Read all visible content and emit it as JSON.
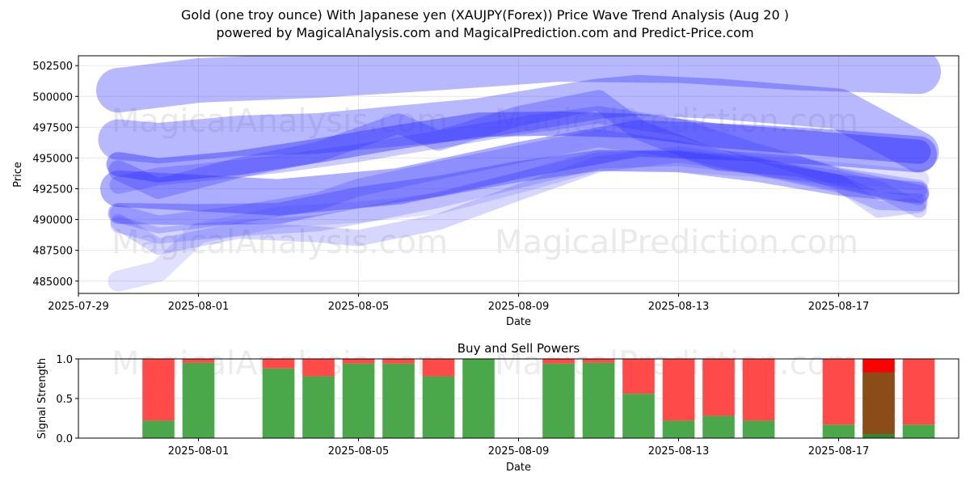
{
  "title": "Gold (one troy ounce) With Japanese yen (XAUJPY(Forex)) Price Wave Trend Analysis (Aug 20 )",
  "subtitle": "powered by MagicalAnalysis.com and MagicalPrediction.com and Predict-Price.com",
  "watermarks": [
    "MagicalAnalysis.com",
    "MagicalPrediction.com"
  ],
  "colors": {
    "wave": "#3333ff",
    "buy": "#4aa84a",
    "sell": "#ff4a4a",
    "sell_dark": "#ff0000",
    "buy_dark": "#2e8b2e"
  },
  "chart_data": [
    {
      "type": "line",
      "title": "",
      "xlabel": "Date",
      "ylabel": "Price",
      "xlim": [
        "2025-07-29",
        "2025-08-20"
      ],
      "ylim": [
        484000,
        503300
      ],
      "x_ticks": [
        "2025-07-29",
        "2025-08-01",
        "2025-08-05",
        "2025-08-09",
        "2025-08-13",
        "2025-08-17"
      ],
      "y_ticks": [
        485000,
        487500,
        490000,
        492500,
        495000,
        497500,
        500000,
        502500
      ],
      "grid": true,
      "series": [
        {
          "x": [
            "2025-07-30",
            "2025-08-01",
            "2025-08-04",
            "2025-08-07",
            "2025-08-10",
            "2025-08-13",
            "2025-08-16",
            "2025-08-19"
          ],
          "y": [
            500500,
            501300,
            501700,
            502300,
            503000,
            502900,
            502300,
            502000
          ],
          "alpha": 0.35,
          "width": 55
        },
        {
          "x": [
            "2025-07-30",
            "2025-07-31",
            "2025-08-02",
            "2025-08-04",
            "2025-08-06",
            "2025-08-08",
            "2025-08-11",
            "2025-08-12",
            "2025-08-14",
            "2025-08-17",
            "2025-08-19"
          ],
          "y": [
            496500,
            496200,
            496800,
            497000,
            497600,
            498200,
            499800,
            500100,
            499800,
            499000,
            495500
          ],
          "alpha": 0.35,
          "width": 50
        },
        {
          "x": [
            "2025-07-30",
            "2025-07-31",
            "2025-08-02",
            "2025-08-04",
            "2025-08-06",
            "2025-08-08",
            "2025-08-10",
            "2025-08-12",
            "2025-08-14",
            "2025-08-16",
            "2025-08-19"
          ],
          "y": [
            494500,
            494000,
            494600,
            495600,
            496700,
            497700,
            497800,
            497600,
            496800,
            496300,
            495500
          ],
          "alpha": 0.45,
          "width": 30
        },
        {
          "x": [
            "2025-07-30",
            "2025-07-31",
            "2025-08-02",
            "2025-08-04",
            "2025-08-06",
            "2025-08-07",
            "2025-08-09",
            "2025-08-11",
            "2025-08-12",
            "2025-08-14",
            "2025-08-16",
            "2025-08-17",
            "2025-08-19"
          ],
          "y": [
            494000,
            492500,
            494200,
            495500,
            497800,
            496400,
            498400,
            499700,
            497300,
            494800,
            494300,
            493300,
            492000
          ],
          "alpha": 0.3,
          "width": 25
        },
        {
          "x": [
            "2025-07-30",
            "2025-07-31",
            "2025-08-01",
            "2025-08-03",
            "2025-08-05",
            "2025-08-07",
            "2025-08-09",
            "2025-08-11",
            "2025-08-13",
            "2025-08-15",
            "2025-08-17",
            "2025-08-19"
          ],
          "y": [
            492800,
            493500,
            493800,
            494500,
            495400,
            496500,
            497600,
            498500,
            497500,
            495400,
            493500,
            492500
          ],
          "alpha": 0.25,
          "width": 22
        },
        {
          "x": [
            "2025-07-30",
            "2025-08-01",
            "2025-08-03",
            "2025-08-05",
            "2025-08-07",
            "2025-08-09",
            "2025-08-11",
            "2025-08-13",
            "2025-08-15",
            "2025-08-17",
            "2025-08-19"
          ],
          "y": [
            490500,
            490400,
            490500,
            491800,
            492700,
            493900,
            494800,
            494700,
            493900,
            492800,
            492200
          ],
          "alpha": 0.35,
          "width": 26
        },
        {
          "x": [
            "2025-07-30",
            "2025-07-31",
            "2025-08-02",
            "2025-08-04",
            "2025-08-05",
            "2025-08-07",
            "2025-08-09",
            "2025-08-11",
            "2025-08-13",
            "2025-08-15",
            "2025-08-17",
            "2025-08-18",
            "2025-08-19"
          ],
          "y": [
            490500,
            489600,
            490400,
            491500,
            492600,
            494000,
            495300,
            496600,
            495700,
            494300,
            492900,
            491500,
            491400
          ],
          "alpha": 0.25,
          "width": 22
        },
        {
          "x": [
            "2025-07-30",
            "2025-07-31",
            "2025-08-02",
            "2025-08-04",
            "2025-08-05",
            "2025-08-07",
            "2025-08-09",
            "2025-08-11",
            "2025-08-13",
            "2025-08-15",
            "2025-08-17",
            "2025-08-18",
            "2025-08-19"
          ],
          "y": [
            489600,
            488700,
            489300,
            489700,
            490300,
            491600,
            493200,
            494800,
            495000,
            494300,
            493300,
            492500,
            490800
          ],
          "alpha": 0.2,
          "width": 20
        },
        {
          "x": [
            "2025-07-30",
            "2025-07-31",
            "2025-08-02",
            "2025-08-04",
            "2025-08-05",
            "2025-08-07",
            "2025-08-09",
            "2025-08-11",
            "2025-08-13",
            "2025-08-15",
            "2025-08-17",
            "2025-08-18",
            "2025-08-19"
          ],
          "y": [
            489800,
            487800,
            489100,
            488800,
            488500,
            489800,
            492200,
            494500,
            495300,
            494300,
            493000,
            490800,
            491200
          ],
          "alpha": 0.2,
          "width": 20
        },
        {
          "x": [
            "2025-07-30",
            "2025-07-31",
            "2025-08-01",
            "2025-08-03",
            "2025-08-05",
            "2025-08-07",
            "2025-08-09",
            "2025-08-11",
            "2025-08-13",
            "2025-08-15",
            "2025-08-17",
            "2025-08-19"
          ],
          "y": [
            485000,
            485800,
            488900,
            490200,
            490600,
            491300,
            493000,
            494800,
            494700,
            494300,
            493800,
            493200
          ],
          "alpha": 0.15,
          "width": 26
        },
        {
          "x": [
            "2025-07-30",
            "2025-08-03",
            "2025-08-06",
            "2025-08-09",
            "2025-08-12",
            "2025-08-15",
            "2025-08-17",
            "2025-08-19"
          ],
          "y": [
            492500,
            491800,
            492700,
            494800,
            496600,
            496200,
            495800,
            495300
          ],
          "alpha": 0.4,
          "width": 45
        }
      ]
    },
    {
      "type": "bar",
      "title": "Buy and Sell Powers",
      "xlabel": "Date",
      "ylabel": "Signal Strength",
      "ylim": [
        0,
        1
      ],
      "y_ticks": [
        0.0,
        0.5,
        1.0
      ],
      "y_tick_labels": [
        "0.0",
        "0.5",
        "1.0"
      ],
      "x_ticks": [
        "2025-08-01",
        "2025-08-05",
        "2025-08-09",
        "2025-08-13",
        "2025-08-17"
      ],
      "grid": true,
      "bars": [
        {
          "date": "2025-07-31",
          "buy": 0.22,
          "sell": 0.78
        },
        {
          "date": "2025-08-01",
          "buy": 0.95,
          "sell": 0.05
        },
        {
          "date": "2025-08-03",
          "buy": 0.88,
          "sell": 0.12
        },
        {
          "date": "2025-08-04",
          "buy": 0.78,
          "sell": 0.22
        },
        {
          "date": "2025-08-05",
          "buy": 0.94,
          "sell": 0.06
        },
        {
          "date": "2025-08-06",
          "buy": 0.94,
          "sell": 0.06
        },
        {
          "date": "2025-08-07",
          "buy": 0.78,
          "sell": 0.22
        },
        {
          "date": "2025-08-08",
          "buy": 1.0,
          "sell": 0.0
        },
        {
          "date": "2025-08-10",
          "buy": 0.94,
          "sell": 0.06
        },
        {
          "date": "2025-08-11",
          "buy": 0.95,
          "sell": 0.05
        },
        {
          "date": "2025-08-12",
          "buy": 0.56,
          "sell": 0.44
        },
        {
          "date": "2025-08-13",
          "buy": 0.22,
          "sell": 0.78
        },
        {
          "date": "2025-08-14",
          "buy": 0.28,
          "sell": 0.72
        },
        {
          "date": "2025-08-15",
          "buy": 0.22,
          "sell": 0.78
        },
        {
          "date": "2025-08-17",
          "buy": 0.17,
          "sell": 0.83
        },
        {
          "date": "2025-08-18",
          "buy": 0.05,
          "sell": 0.95,
          "dark": true
        },
        {
          "date": "2025-08-19",
          "buy": 0.17,
          "sell": 0.83
        }
      ]
    }
  ]
}
